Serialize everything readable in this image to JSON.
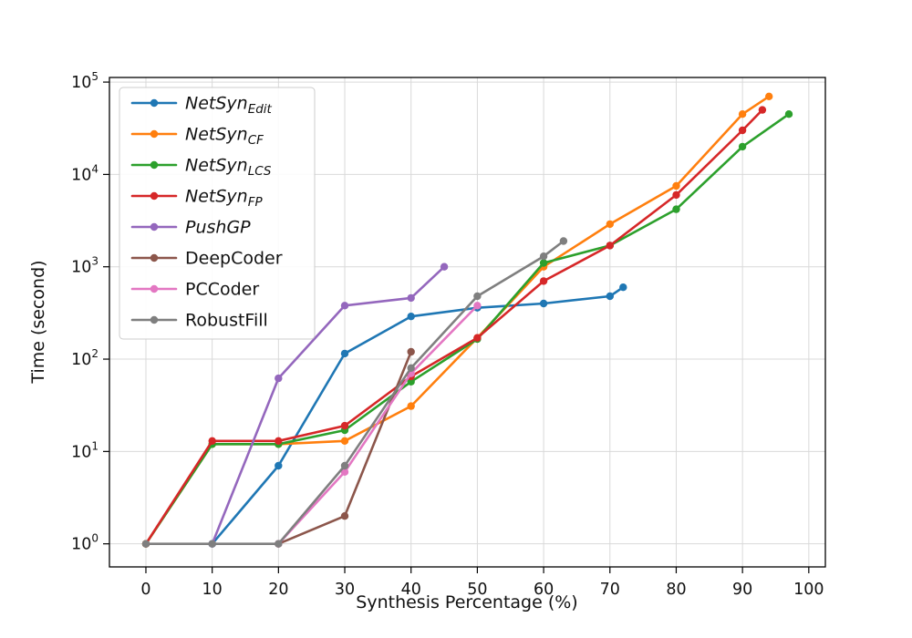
{
  "chart_data": {
    "type": "line",
    "title": "",
    "xlabel": "Synthesis Percentage (%)",
    "ylabel": "Time (second)",
    "x_ticks": [
      0,
      10,
      20,
      30,
      40,
      50,
      60,
      70,
      80,
      90,
      100
    ],
    "y_scale": "log",
    "y_tick_exponents": [
      0,
      1,
      2,
      3,
      4,
      5
    ],
    "xlim": [
      -5.5,
      102.5
    ],
    "ylim_log": [
      -0.25,
      5.05
    ],
    "grid": true,
    "legend_position": "upper left",
    "series": [
      {
        "name": "NetSyn",
        "subscript": "Edit",
        "italic": true,
        "color": "#1f77b4",
        "points": [
          [
            10,
            1
          ],
          [
            20,
            7
          ],
          [
            30,
            115
          ],
          [
            40,
            290
          ],
          [
            50,
            360
          ],
          [
            60,
            400
          ],
          [
            70,
            480
          ],
          [
            72,
            600
          ]
        ]
      },
      {
        "name": "NetSyn",
        "subscript": "CF",
        "italic": true,
        "color": "#ff7f0e",
        "points": [
          [
            0,
            1
          ],
          [
            10,
            12
          ],
          [
            20,
            12
          ],
          [
            30,
            13
          ],
          [
            40,
            31
          ],
          [
            50,
            170
          ],
          [
            60,
            1000
          ],
          [
            70,
            2900
          ],
          [
            80,
            7500
          ],
          [
            90,
            45000
          ],
          [
            94,
            70000
          ]
        ]
      },
      {
        "name": "NetSyn",
        "subscript": "LCS",
        "italic": true,
        "color": "#2ca02c",
        "points": [
          [
            0,
            1
          ],
          [
            10,
            12
          ],
          [
            20,
            12
          ],
          [
            30,
            17
          ],
          [
            40,
            57
          ],
          [
            50,
            165
          ],
          [
            60,
            1100
          ],
          [
            70,
            1700
          ],
          [
            80,
            4200
          ],
          [
            90,
            20000
          ],
          [
            97,
            45000
          ]
        ]
      },
      {
        "name": "NetSyn",
        "subscript": "FP",
        "italic": true,
        "color": "#d62728",
        "points": [
          [
            0,
            1
          ],
          [
            10,
            13
          ],
          [
            20,
            13
          ],
          [
            30,
            19
          ],
          [
            40,
            65
          ],
          [
            50,
            170
          ],
          [
            60,
            700
          ],
          [
            70,
            1700
          ],
          [
            80,
            6000
          ],
          [
            90,
            30000
          ],
          [
            93,
            50000
          ]
        ]
      },
      {
        "name": "PushGP",
        "subscript": "",
        "italic": true,
        "color": "#9467bd",
        "points": [
          [
            10,
            1
          ],
          [
            20,
            62
          ],
          [
            30,
            380
          ],
          [
            40,
            460
          ],
          [
            45,
            1000
          ]
        ]
      },
      {
        "name": "DeepCoder",
        "subscript": "",
        "italic": false,
        "color": "#8c564b",
        "points": [
          [
            20,
            1
          ],
          [
            30,
            2
          ],
          [
            40,
            120
          ]
        ]
      },
      {
        "name": "PCCoder",
        "subscript": "",
        "italic": false,
        "color": "#e377c2",
        "points": [
          [
            20,
            1
          ],
          [
            30,
            6
          ],
          [
            40,
            70
          ],
          [
            50,
            380
          ]
        ]
      },
      {
        "name": "RobustFill",
        "subscript": "",
        "italic": false,
        "color": "#7f7f7f",
        "points": [
          [
            0,
            1
          ],
          [
            10,
            1
          ],
          [
            20,
            1
          ],
          [
            30,
            7
          ],
          [
            40,
            80
          ],
          [
            50,
            480
          ],
          [
            60,
            1300
          ],
          [
            63,
            1900
          ]
        ]
      }
    ]
  }
}
